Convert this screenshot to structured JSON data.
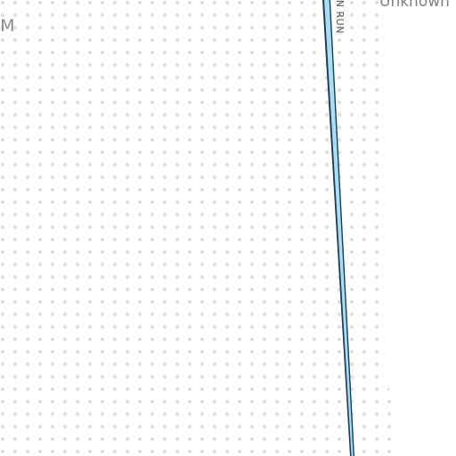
{
  "map": {
    "labels": {
      "area_fragment": "IM",
      "unknown_fragment": "Unknown",
      "stream_name": "IAN RUN"
    },
    "colors": {
      "background": "#ffffff",
      "dot_pattern": "#e0e0da",
      "water_fill": "#a8dff0",
      "water_stroke": "#1d3a5a",
      "label_text": "#8a8a8a"
    },
    "features": [
      {
        "kind": "dotted-area",
        "pattern": "grey-dots"
      },
      {
        "kind": "stream",
        "name": "IAN RUN"
      }
    ]
  }
}
